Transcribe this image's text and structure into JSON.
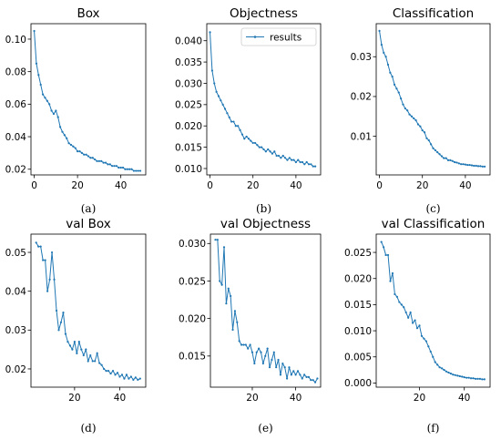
{
  "series_color": "#1f77b4",
  "chart_data": [
    {
      "type": "line",
      "panel": "a",
      "caption": "(a)",
      "title": "Box",
      "xlim": [
        -1.5,
        51.5
      ],
      "ylim": [
        0.0165,
        0.1095
      ],
      "xticks": [
        0,
        20,
        40
      ],
      "yticks": [
        0.02,
        0.04,
        0.06,
        0.08,
        0.1
      ],
      "ytick_labels": [
        "0.02",
        "0.04",
        "0.06",
        "0.08",
        "0.10"
      ],
      "series": [
        {
          "x_start": 0,
          "values": [
            0.105,
            0.085,
            0.078,
            0.072,
            0.066,
            0.064,
            0.062,
            0.06,
            0.056,
            0.054,
            0.056,
            0.052,
            0.046,
            0.043,
            0.041,
            0.039,
            0.036,
            0.035,
            0.034,
            0.033,
            0.031,
            0.031,
            0.03,
            0.029,
            0.029,
            0.028,
            0.027,
            0.027,
            0.026,
            0.025,
            0.025,
            0.025,
            0.024,
            0.024,
            0.023,
            0.023,
            0.022,
            0.022,
            0.022,
            0.021,
            0.021,
            0.021,
            0.02,
            0.02,
            0.02,
            0.02,
            0.019,
            0.019,
            0.019,
            0.019
          ]
        }
      ]
    },
    {
      "type": "line",
      "panel": "b",
      "caption": "(b)",
      "title": "Objectness",
      "xlim": [
        -1.5,
        51.5
      ],
      "ylim": [
        0.0085,
        0.044
      ],
      "xticks": [
        0,
        20,
        40
      ],
      "yticks": [
        0.01,
        0.015,
        0.02,
        0.025,
        0.03,
        0.035,
        0.04
      ],
      "ytick_labels": [
        "0.010",
        "0.015",
        "0.020",
        "0.025",
        "0.030",
        "0.035",
        "0.040"
      ],
      "legend": {
        "label": "results",
        "position": "upper right"
      },
      "series": [
        {
          "name": "results",
          "x_start": 0,
          "values": [
            0.042,
            0.033,
            0.03,
            0.028,
            0.027,
            0.026,
            0.025,
            0.024,
            0.023,
            0.022,
            0.021,
            0.021,
            0.02,
            0.02,
            0.019,
            0.018,
            0.017,
            0.0175,
            0.017,
            0.0165,
            0.016,
            0.016,
            0.0155,
            0.015,
            0.015,
            0.0145,
            0.014,
            0.0145,
            0.014,
            0.0135,
            0.014,
            0.013,
            0.013,
            0.0125,
            0.013,
            0.0125,
            0.012,
            0.0125,
            0.012,
            0.012,
            0.0115,
            0.012,
            0.0115,
            0.0115,
            0.011,
            0.0115,
            0.011,
            0.011,
            0.0105,
            0.0105
          ]
        }
      ]
    },
    {
      "type": "line",
      "panel": "c",
      "caption": "(c)",
      "title": "Classification",
      "xlim": [
        -1.5,
        51.5
      ],
      "ylim": [
        0.0003,
        0.0383
      ],
      "xticks": [
        0,
        20,
        40
      ],
      "yticks": [
        0.01,
        0.02,
        0.03
      ],
      "ytick_labels": [
        "0.01",
        "0.02",
        "0.03"
      ],
      "series": [
        {
          "x_start": 0,
          "values": [
            0.0365,
            0.033,
            0.031,
            0.03,
            0.028,
            0.026,
            0.025,
            0.023,
            0.022,
            0.021,
            0.0195,
            0.018,
            0.017,
            0.0165,
            0.0155,
            0.015,
            0.0145,
            0.014,
            0.013,
            0.0125,
            0.0115,
            0.011,
            0.0095,
            0.009,
            0.008,
            0.007,
            0.0065,
            0.006,
            0.0055,
            0.005,
            0.0045,
            0.0045,
            0.004,
            0.004,
            0.0038,
            0.0035,
            0.0034,
            0.0032,
            0.003,
            0.003,
            0.0029,
            0.0028,
            0.0028,
            0.0027,
            0.0026,
            0.0026,
            0.0025,
            0.0025,
            0.0024,
            0.0024
          ]
        }
      ]
    },
    {
      "type": "line",
      "panel": "d",
      "caption": "(d)",
      "title": "val Box",
      "xlim": [
        0.7,
        51.5
      ],
      "ylim": [
        0.0153,
        0.0547
      ],
      "xticks": [
        20,
        40
      ],
      "yticks": [
        0.02,
        0.03,
        0.04,
        0.05
      ],
      "ytick_labels": [
        "0.02",
        "0.03",
        "0.04",
        "0.05"
      ],
      "series": [
        {
          "x_start": 3,
          "values": [
            0.0525,
            0.0515,
            0.0515,
            0.048,
            0.048,
            0.04,
            0.043,
            0.05,
            0.043,
            0.035,
            0.03,
            0.032,
            0.0345,
            0.029,
            0.027,
            0.026,
            0.025,
            0.027,
            0.024,
            0.027,
            0.025,
            0.0235,
            0.025,
            0.022,
            0.0235,
            0.022,
            0.022,
            0.024,
            0.0215,
            0.021,
            0.02,
            0.0195,
            0.0195,
            0.0188,
            0.0195,
            0.0185,
            0.019,
            0.018,
            0.0185,
            0.0175,
            0.0185,
            0.0175,
            0.018,
            0.0172,
            0.0178,
            0.0172,
            0.0175
          ]
        }
      ]
    },
    {
      "type": "line",
      "panel": "e",
      "caption": "(e)",
      "title": "val Objectness",
      "xlim": [
        0.7,
        51.5
      ],
      "ylim": [
        0.01085,
        0.03125
      ],
      "xticks": [
        20,
        40
      ],
      "yticks": [
        0.015,
        0.02,
        0.025,
        0.03
      ],
      "ytick_labels": [
        "0.015",
        "0.020",
        "0.025",
        "0.030"
      ],
      "series": [
        {
          "x_start": 3,
          "values": [
            0.0305,
            0.0305,
            0.025,
            0.0245,
            0.0295,
            0.022,
            0.024,
            0.023,
            0.0185,
            0.021,
            0.0195,
            0.017,
            0.0165,
            0.0165,
            0.0165,
            0.016,
            0.0165,
            0.0155,
            0.014,
            0.0155,
            0.016,
            0.0155,
            0.014,
            0.015,
            0.016,
            0.0135,
            0.0145,
            0.0155,
            0.0135,
            0.0145,
            0.0125,
            0.014,
            0.0135,
            0.012,
            0.0135,
            0.0125,
            0.013,
            0.0125,
            0.013,
            0.0125,
            0.012,
            0.0125,
            0.0122,
            0.0122,
            0.0118,
            0.0118,
            0.0115,
            0.012
          ]
        }
      ]
    },
    {
      "type": "line",
      "panel": "f",
      "caption": "(f)",
      "title": "val Classification",
      "xlim": [
        0.7,
        51.5
      ],
      "ylim": [
        -0.0008,
        0.0285
      ],
      "xticks": [
        20,
        40
      ],
      "yticks": [
        0.0,
        0.005,
        0.01,
        0.015,
        0.02,
        0.025
      ],
      "ytick_labels": [
        "0.000",
        "0.005",
        "0.010",
        "0.015",
        "0.020",
        "0.025"
      ],
      "series": [
        {
          "x_start": 3,
          "values": [
            0.027,
            0.026,
            0.0245,
            0.0245,
            0.0195,
            0.021,
            0.017,
            0.0165,
            0.0155,
            0.015,
            0.0145,
            0.0135,
            0.0125,
            0.0135,
            0.0115,
            0.012,
            0.0105,
            0.011,
            0.009,
            0.0085,
            0.008,
            0.007,
            0.006,
            0.005,
            0.004,
            0.0035,
            0.003,
            0.0028,
            0.0025,
            0.0022,
            0.002,
            0.0018,
            0.0016,
            0.0015,
            0.0014,
            0.0013,
            0.0012,
            0.0011,
            0.001,
            0.001,
            0.0009,
            0.0009,
            0.0008,
            0.0008,
            0.0008,
            0.0007,
            0.0007
          ]
        }
      ]
    }
  ]
}
